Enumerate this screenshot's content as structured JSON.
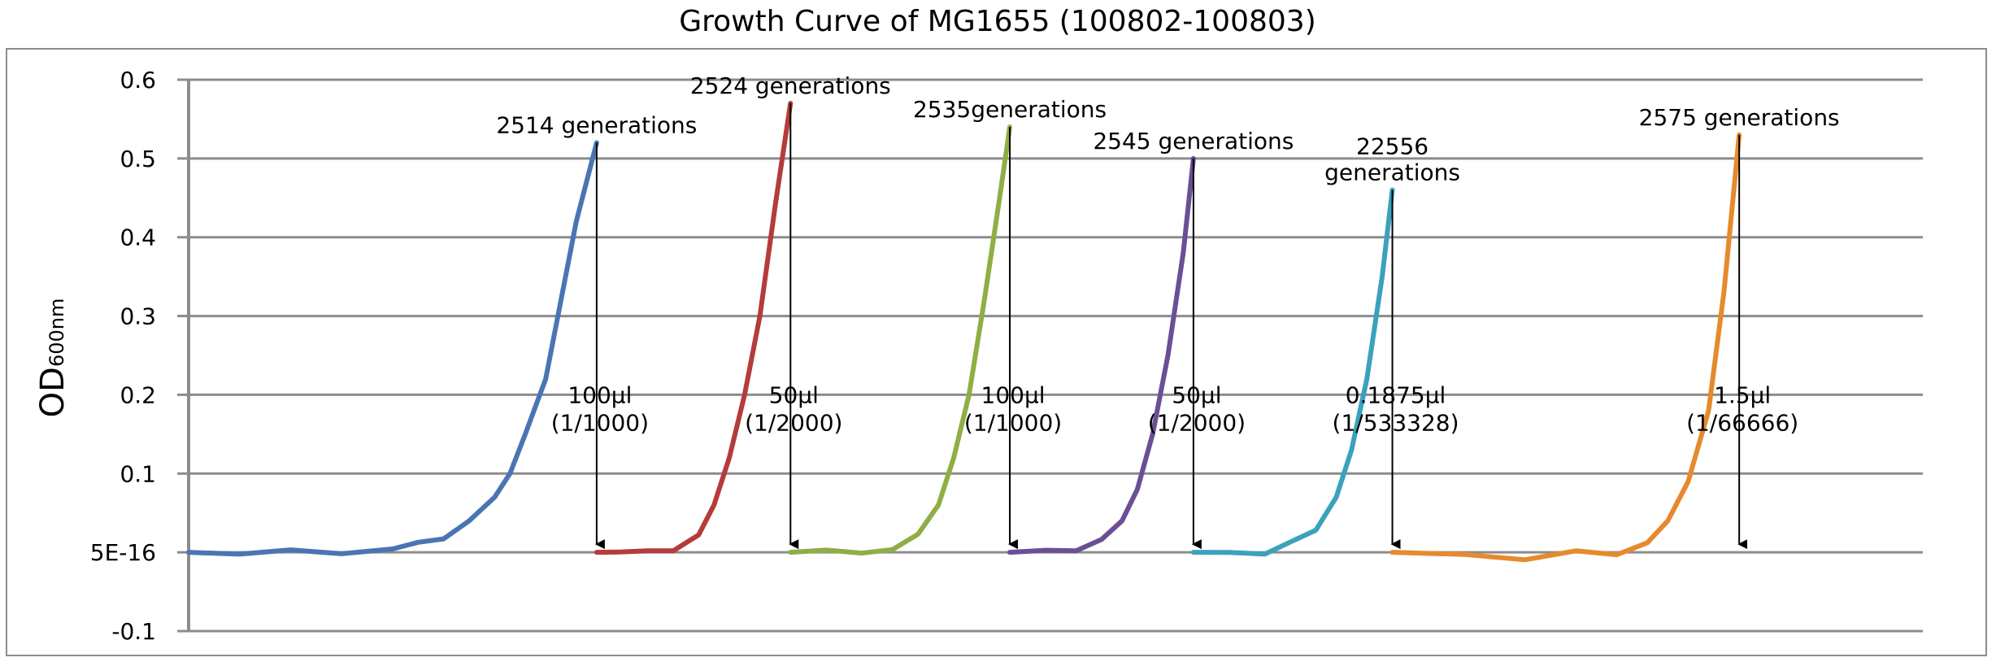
{
  "chart_data": {
    "type": "line",
    "title": "Growth Curve of MG1655 (100802-100803)",
    "ylabel": "OD",
    "ylabel_sub": "600nm",
    "ylim": [
      -0.1,
      0.6
    ],
    "yticks": [
      {
        "v": 0.6,
        "label": "0.6"
      },
      {
        "v": 0.5,
        "label": "0.5"
      },
      {
        "v": 0.4,
        "label": "0.4"
      },
      {
        "v": 0.3,
        "label": "0.3"
      },
      {
        "v": 0.2,
        "label": "0.2"
      },
      {
        "v": 0.1,
        "label": "0.1"
      },
      {
        "v": 0.0,
        "label": "5E-16"
      },
      {
        "v": -0.1,
        "label": "-0.1"
      }
    ],
    "grid": true,
    "legend": "none",
    "xlim": [
      0,
      340
    ],
    "series": [
      {
        "color": "#4a75b4",
        "x": [
          0,
          10,
          20,
          30,
          40,
          45,
          50,
          55,
          60,
          63,
          66,
          70,
          73,
          76,
          80
        ],
        "y": [
          0.0,
          0.0,
          0.0,
          0.0,
          0.005,
          0.01,
          0.02,
          0.04,
          0.07,
          0.1,
          0.15,
          0.22,
          0.32,
          0.42,
          0.52
        ]
      },
      {
        "color": "#b43c3a",
        "x": [
          80,
          85,
          90,
          95,
          100,
          103,
          106,
          109,
          112,
          115,
          118
        ],
        "y": [
          0.0,
          0.0,
          0.0,
          0.005,
          0.02,
          0.06,
          0.12,
          0.2,
          0.3,
          0.44,
          0.57
        ]
      },
      {
        "color": "#8fae45",
        "x": [
          118,
          125,
          132,
          138,
          143,
          147,
          150,
          153,
          156,
          159,
          161
        ],
        "y": [
          0.0,
          0.0,
          0.0,
          0.005,
          0.02,
          0.06,
          0.12,
          0.2,
          0.32,
          0.45,
          0.54
        ]
      },
      {
        "color": "#6b4f96",
        "x": [
          161,
          168,
          174,
          179,
          183,
          186,
          189,
          192,
          195,
          197
        ],
        "y": [
          0.0,
          0.0,
          0.005,
          0.015,
          0.04,
          0.08,
          0.15,
          0.25,
          0.38,
          0.5
        ]
      },
      {
        "color": "#3ba2bc",
        "x": [
          197,
          204,
          211,
          216,
          221,
          225,
          228,
          231,
          234,
          236
        ],
        "y": [
          0.0,
          0.0,
          0.0,
          0.01,
          0.03,
          0.07,
          0.13,
          0.22,
          0.35,
          0.46
        ]
      },
      {
        "color": "#e68a2e",
        "x": [
          236,
          250,
          262,
          272,
          280,
          286,
          290,
          294,
          298,
          301,
          304
        ],
        "y": [
          0.0,
          0.0,
          -0.01,
          0.0,
          0.0,
          0.01,
          0.04,
          0.09,
          0.18,
          0.33,
          0.53
        ]
      }
    ],
    "annotations": [
      {
        "text": [
          "2514 generations"
        ],
        "x": 80,
        "top": 0.52,
        "dilution": [
          "100μl",
          "(1/1000)"
        ]
      },
      {
        "text": [
          "2524 generations"
        ],
        "x": 118,
        "top": 0.57,
        "dilution": [
          "50μl",
          "(1/2000)"
        ]
      },
      {
        "text": [
          "2535generations"
        ],
        "x": 161,
        "top": 0.54,
        "dilution": [
          "100μl",
          "(1/1000)"
        ]
      },
      {
        "text": [
          "2545 generations"
        ],
        "x": 197,
        "top": 0.5,
        "dilution": [
          "50μl",
          "(1/2000)"
        ]
      },
      {
        "text": [
          "22556",
          "generations"
        ],
        "x": 236,
        "top": 0.46,
        "dilution": [
          "0.1875μl",
          "(1/533328)"
        ]
      },
      {
        "text": [
          "2575 generations"
        ],
        "x": 304,
        "top": 0.53,
        "dilution": [
          "1.5μl",
          "(1/66666)"
        ]
      }
    ]
  }
}
